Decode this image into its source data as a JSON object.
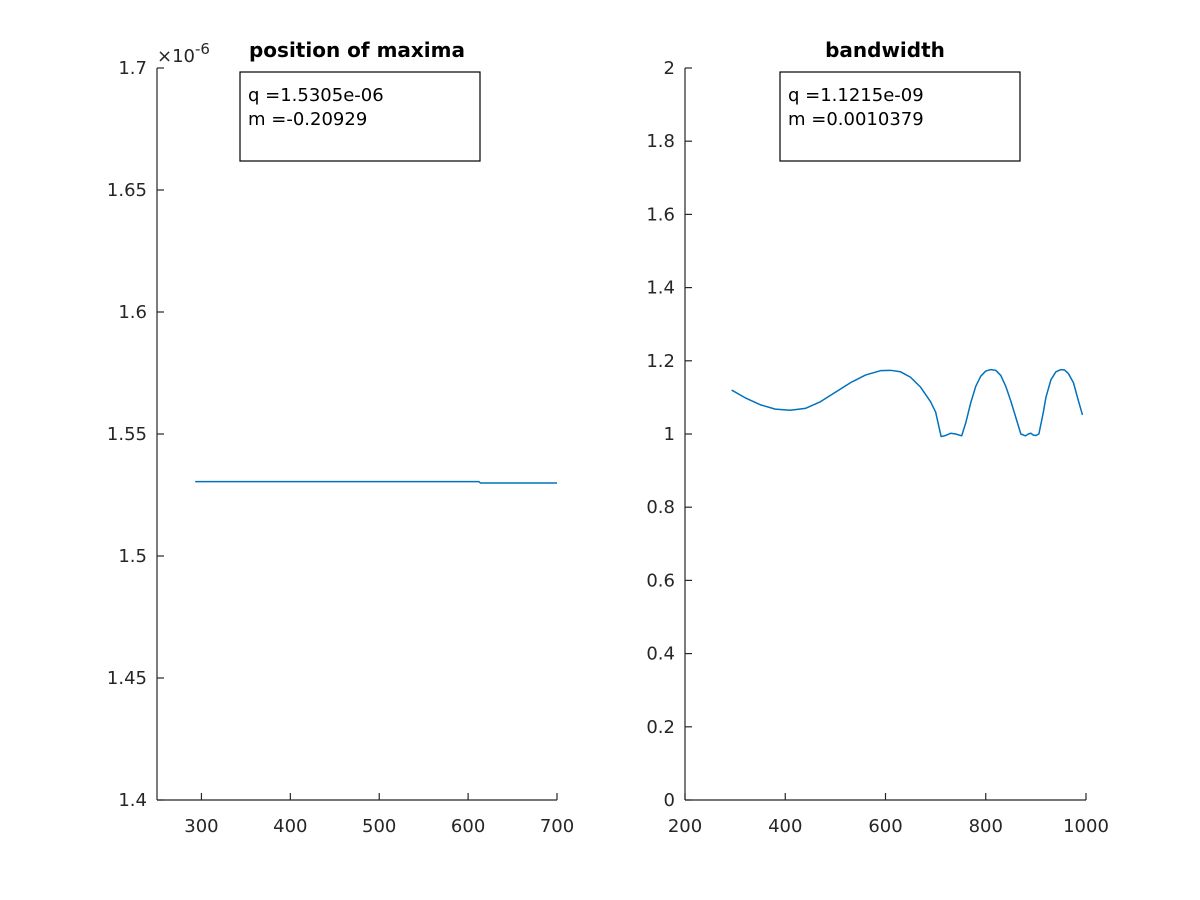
{
  "chart_data": [
    {
      "type": "line",
      "title": "position of maxima",
      "xlabel": "",
      "ylabel": "",
      "xlim": [
        250,
        700
      ],
      "ylim": [
        1.4e-06,
        1.7e-06
      ],
      "xticks": [
        300,
        400,
        500,
        600,
        700
      ],
      "xtick_labels": [
        "300",
        "400",
        "500",
        "600",
        "700"
      ],
      "yticks": [
        1.4e-06,
        1.45e-06,
        1.5e-06,
        1.55e-06,
        1.6e-06,
        1.65e-06,
        1.7e-06
      ],
      "ytick_labels": [
        "1.4",
        "1.45",
        "1.5",
        "1.55",
        "1.6",
        "1.65",
        "1.7"
      ],
      "y_exponent": {
        "base": "×10",
        "power": "-6"
      },
      "annotation": [
        "q =1.5305e-06",
        "m =-0.20929"
      ],
      "series": [
        {
          "name": "position of maxima",
          "color": "#0072BD",
          "x": [
            293,
            350,
            400,
            450,
            500,
            550,
            600,
            612,
            614,
            650,
            700
          ],
          "y": [
            1.5305e-06,
            1.5305e-06,
            1.5305e-06,
            1.5305e-06,
            1.5305e-06,
            1.5305e-06,
            1.5305e-06,
            1.5305e-06,
            1.5299e-06,
            1.5299e-06,
            1.5299e-06
          ]
        }
      ]
    },
    {
      "type": "line",
      "title": "bandwidth",
      "xlabel": "",
      "ylabel": "",
      "xlim": [
        200,
        1000
      ],
      "ylim": [
        0,
        2
      ],
      "xticks": [
        200,
        400,
        600,
        800,
        1000
      ],
      "xtick_labels": [
        "200",
        "400",
        "600",
        "800",
        "1000"
      ],
      "yticks": [
        0,
        0.2,
        0.4,
        0.6,
        0.8,
        1,
        1.2,
        1.4,
        1.6,
        1.8,
        2
      ],
      "ytick_labels": [
        "0",
        "0.2",
        "0.4",
        "0.6",
        "0.8",
        "1",
        "1.2",
        "1.4",
        "1.6",
        "1.8",
        "2"
      ],
      "annotation": [
        "q =1.1215e-09",
        "m =0.0010379"
      ],
      "series": [
        {
          "name": "bandwidth",
          "color": "#0072BD",
          "x": [
            293,
            320,
            350,
            380,
            410,
            440,
            470,
            500,
            530,
            560,
            590,
            610,
            630,
            650,
            670,
            690,
            700,
            711,
            720,
            730,
            740,
            752,
            760,
            770,
            780,
            790,
            800,
            810,
            820,
            830,
            840,
            850,
            860,
            870,
            879,
            885,
            890,
            895,
            900,
            906,
            915,
            920,
            930,
            940,
            950,
            957,
            965,
            975,
            985,
            993
          ],
          "y": [
            1.12,
            1.099,
            1.08,
            1.068,
            1.065,
            1.07,
            1.088,
            1.114,
            1.14,
            1.161,
            1.173,
            1.174,
            1.17,
            1.155,
            1.128,
            1.088,
            1.06,
            0.993,
            0.996,
            1.002,
            1.0,
            0.995,
            1.03,
            1.085,
            1.13,
            1.158,
            1.172,
            1.176,
            1.174,
            1.16,
            1.13,
            1.09,
            1.045,
            1.0,
            0.995,
            1.0,
            1.002,
            0.997,
            0.996,
            1.0,
            1.06,
            1.1,
            1.148,
            1.17,
            1.176,
            1.175,
            1.165,
            1.14,
            1.09,
            1.052
          ]
        }
      ]
    }
  ]
}
